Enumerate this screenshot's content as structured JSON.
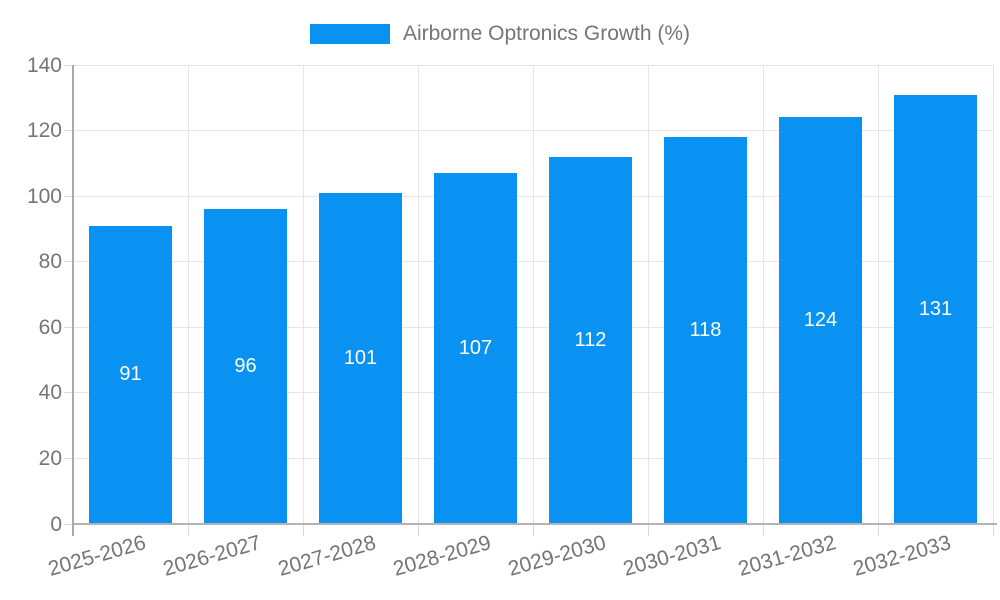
{
  "legend": {
    "label": "Airborne Optronics Growth (%)"
  },
  "chart_data": {
    "type": "bar",
    "title": "",
    "xlabel": "",
    "ylabel": "",
    "categories": [
      "2025-2026",
      "2026-2027",
      "2027-2028",
      "2028-2029",
      "2029-2030",
      "2030-2031",
      "2031-2032",
      "2032-2033"
    ],
    "values": [
      91,
      96,
      101,
      107,
      112,
      118,
      124,
      131
    ],
    "series_name": "Airborne Optronics Growth (%)",
    "ylim": [
      0,
      140
    ],
    "yticks": [
      0,
      20,
      40,
      60,
      80,
      100,
      120,
      140
    ],
    "grid": true,
    "legend_position": "top",
    "value_labels": "inside-center",
    "x_tick_rotation_deg": -16,
    "colors": {
      "bar": "#0992f2",
      "value_label": "#ffffff",
      "axis_text": "#757575",
      "gridline": "#e6e6e6",
      "axis_line": "#aaaaaa",
      "baseline": "#b3b3b3",
      "tick": "#d9d9d9",
      "background": "#ffffff"
    }
  }
}
